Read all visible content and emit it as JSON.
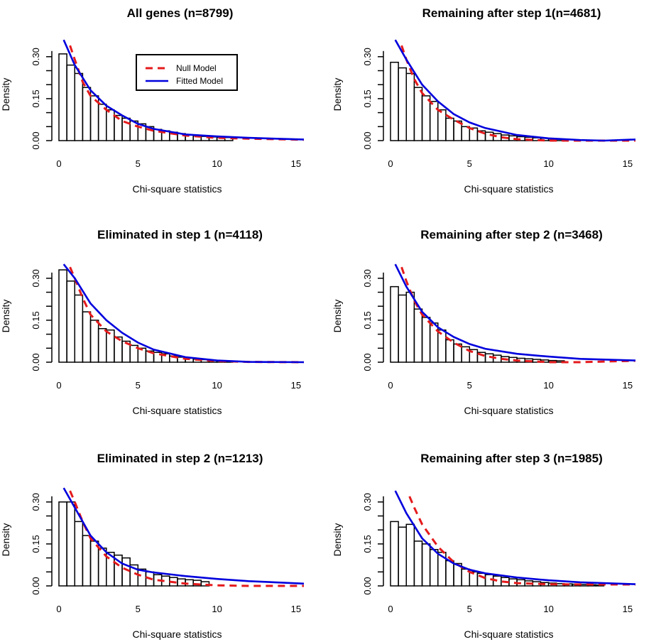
{
  "legend": {
    "null_label": "Null Model",
    "fitted_label": "Fitted Model",
    "null_color": "#e41a1c",
    "fitted_color": "#0000dd"
  },
  "chart_data": [
    {
      "type": "bar",
      "title": "All genes (n=8799)",
      "xlabel": "Chi-square statistics",
      "ylabel": "Density",
      "xlim": [
        0,
        15.5
      ],
      "ylim": [
        0,
        0.33
      ],
      "xticks": [
        "0",
        "5",
        "10",
        "15"
      ],
      "yticks": [
        "0.00",
        "0.15",
        "0.30"
      ],
      "bin_width": 0.5,
      "bin_start": 0,
      "values": [
        0.31,
        0.27,
        0.24,
        0.19,
        0.16,
        0.13,
        0.11,
        0.09,
        0.08,
        0.07,
        0.06,
        0.05,
        0.04,
        0.035,
        0.03,
        0.025,
        0.02,
        0.018,
        0.015,
        0.013,
        0.012,
        0.011
      ],
      "legend": true,
      "curves": {
        "null": [
          [
            0.7,
            0.34
          ],
          [
            1,
            0.29
          ],
          [
            1.5,
            0.21
          ],
          [
            2,
            0.16
          ],
          [
            3,
            0.11
          ],
          [
            4,
            0.07
          ],
          [
            5,
            0.05
          ],
          [
            6,
            0.035
          ],
          [
            8,
            0.018
          ],
          [
            10,
            0.01
          ],
          [
            12,
            0.007
          ],
          [
            15.5,
            0.003
          ]
        ],
        "fitted": [
          [
            0.3,
            0.36
          ],
          [
            1,
            0.27
          ],
          [
            2,
            0.18
          ],
          [
            3,
            0.125
          ],
          [
            4,
            0.09
          ],
          [
            5,
            0.06
          ],
          [
            6,
            0.042
          ],
          [
            8,
            0.022
          ],
          [
            10,
            0.015
          ],
          [
            12,
            0.01
          ],
          [
            15.5,
            0.004
          ]
        ]
      }
    },
    {
      "type": "bar",
      "title": "Remaining after step 1(n=4681)",
      "xlabel": "Chi-square statistics",
      "ylabel": "Density",
      "xlim": [
        0,
        15.5
      ],
      "ylim": [
        0,
        0.33
      ],
      "xticks": [
        "0",
        "5",
        "10",
        "15"
      ],
      "yticks": [
        "0.00",
        "0.15",
        "0.30"
      ],
      "bin_width": 0.5,
      "bin_start": 0,
      "values": [
        0.28,
        0.26,
        0.24,
        0.19,
        0.16,
        0.14,
        0.11,
        0.08,
        0.07,
        0.05,
        0.045,
        0.035,
        0.03,
        0.025,
        0.02,
        0.017,
        0.014,
        0.012,
        0.01,
        0.008,
        0.006,
        0.005
      ],
      "legend": false,
      "curves": {
        "null": [
          [
            0.7,
            0.34
          ],
          [
            1,
            0.29
          ],
          [
            1.5,
            0.22
          ],
          [
            2,
            0.17
          ],
          [
            3,
            0.11
          ],
          [
            4,
            0.075
          ],
          [
            5,
            0.045
          ],
          [
            6,
            0.025
          ],
          [
            7,
            0.012
          ],
          [
            8,
            0.005
          ],
          [
            10,
            0.0
          ],
          [
            12,
            0.0
          ],
          [
            15.5,
            0.0
          ]
        ],
        "fitted": [
          [
            0.3,
            0.36
          ],
          [
            1,
            0.29
          ],
          [
            2,
            0.2
          ],
          [
            3,
            0.14
          ],
          [
            4,
            0.095
          ],
          [
            5,
            0.065
          ],
          [
            6,
            0.045
          ],
          [
            8,
            0.02
          ],
          [
            10,
            0.008
          ],
          [
            12,
            0.002
          ],
          [
            13.5,
            0.0
          ],
          [
            15.5,
            0.004
          ]
        ]
      }
    },
    {
      "type": "bar",
      "title": "Eliminated in step 1 (n=4118)",
      "xlabel": "Chi-square statistics",
      "ylabel": "Density",
      "xlim": [
        0,
        15.5
      ],
      "ylim": [
        0,
        0.33
      ],
      "xticks": [
        "0",
        "5",
        "10",
        "15"
      ],
      "yticks": [
        "0.00",
        "0.15",
        "0.30"
      ],
      "bin_width": 0.5,
      "bin_start": 0,
      "values": [
        0.33,
        0.29,
        0.24,
        0.18,
        0.15,
        0.12,
        0.115,
        0.09,
        0.075,
        0.06,
        0.05,
        0.04,
        0.035,
        0.03,
        0.022,
        0.018,
        0.014,
        0.011,
        0.009,
        0.007,
        0.005,
        0.003
      ],
      "legend": false,
      "curves": {
        "null": [
          [
            0.7,
            0.34
          ],
          [
            1,
            0.3
          ],
          [
            1.5,
            0.23
          ],
          [
            2,
            0.17
          ],
          [
            3,
            0.11
          ],
          [
            4,
            0.075
          ],
          [
            5,
            0.05
          ],
          [
            6,
            0.032
          ],
          [
            8,
            0.012
          ],
          [
            10,
            0.004
          ],
          [
            12,
            0.001
          ],
          [
            15.5,
            0.0
          ]
        ],
        "fitted": [
          [
            0.3,
            0.35
          ],
          [
            1,
            0.3
          ],
          [
            2,
            0.21
          ],
          [
            3,
            0.15
          ],
          [
            4,
            0.105
          ],
          [
            5,
            0.07
          ],
          [
            6,
            0.045
          ],
          [
            8,
            0.018
          ],
          [
            10,
            0.006
          ],
          [
            12,
            0.001
          ],
          [
            15.5,
            0.0
          ]
        ]
      }
    },
    {
      "type": "bar",
      "title": "Remaining after step 2 (n=3468)",
      "xlabel": "Chi-square statistics",
      "ylabel": "Density",
      "xlim": [
        0,
        15.5
      ],
      "ylim": [
        0,
        0.33
      ],
      "xticks": [
        "0",
        "5",
        "10",
        "15"
      ],
      "yticks": [
        "0.00",
        "0.15",
        "0.30"
      ],
      "bin_width": 0.5,
      "bin_start": 0,
      "values": [
        0.27,
        0.24,
        0.25,
        0.19,
        0.16,
        0.14,
        0.115,
        0.08,
        0.065,
        0.055,
        0.045,
        0.035,
        0.03,
        0.025,
        0.02,
        0.017,
        0.014,
        0.012,
        0.01,
        0.008,
        0.006,
        0.005
      ],
      "legend": false,
      "curves": {
        "null": [
          [
            0.7,
            0.34
          ],
          [
            1,
            0.29
          ],
          [
            1.5,
            0.22
          ],
          [
            2,
            0.17
          ],
          [
            3,
            0.11
          ],
          [
            4,
            0.07
          ],
          [
            5,
            0.04
          ],
          [
            6,
            0.022
          ],
          [
            7,
            0.012
          ],
          [
            8,
            0.006
          ],
          [
            10,
            0.0
          ],
          [
            12,
            0.0
          ],
          [
            15.5,
            0.005
          ]
        ],
        "fitted": [
          [
            0.3,
            0.35
          ],
          [
            1,
            0.27
          ],
          [
            2,
            0.18
          ],
          [
            3,
            0.125
          ],
          [
            4,
            0.09
          ],
          [
            5,
            0.065
          ],
          [
            6,
            0.048
          ],
          [
            8,
            0.03
          ],
          [
            10,
            0.02
          ],
          [
            12,
            0.012
          ],
          [
            15.5,
            0.006
          ]
        ]
      }
    },
    {
      "type": "bar",
      "title": "Eliminated in step 2 (n=1213)",
      "xlabel": "Chi-square statistics",
      "ylabel": "Density",
      "xlim": [
        0,
        15.5
      ],
      "ylim": [
        0,
        0.33
      ],
      "xticks": [
        "0",
        "5",
        "10",
        "15"
      ],
      "yticks": [
        "0.00",
        "0.15",
        "0.30"
      ],
      "bin_width": 0.5,
      "bin_start": 0,
      "values": [
        0.3,
        0.3,
        0.23,
        0.18,
        0.16,
        0.135,
        0.12,
        0.11,
        0.1,
        0.075,
        0.06,
        0.05,
        0.04,
        0.035,
        0.03,
        0.025,
        0.022,
        0.02,
        0.015
      ],
      "legend": false,
      "curves": {
        "null": [
          [
            0.7,
            0.34
          ],
          [
            1,
            0.3
          ],
          [
            1.5,
            0.23
          ],
          [
            2,
            0.17
          ],
          [
            3,
            0.105
          ],
          [
            4,
            0.065
          ],
          [
            5,
            0.04
          ],
          [
            6,
            0.022
          ],
          [
            8,
            0.008
          ],
          [
            10,
            0.002
          ],
          [
            12,
            0.0
          ],
          [
            15.5,
            0.0
          ]
        ],
        "fitted": [
          [
            0.3,
            0.35
          ],
          [
            1,
            0.28
          ],
          [
            2,
            0.18
          ],
          [
            3,
            0.12
          ],
          [
            4,
            0.08
          ],
          [
            5,
            0.058
          ],
          [
            6,
            0.048
          ],
          [
            8,
            0.035
          ],
          [
            10,
            0.025
          ],
          [
            12,
            0.017
          ],
          [
            15.5,
            0.008
          ]
        ]
      }
    },
    {
      "type": "bar",
      "title": "Remaining after step 3 (n=1985)",
      "xlabel": "Chi-square statistics",
      "ylabel": "Density",
      "xlim": [
        0,
        15.5
      ],
      "ylim": [
        0,
        0.33
      ],
      "xticks": [
        "0",
        "5",
        "10",
        "15"
      ],
      "yticks": [
        "0.00",
        "0.15",
        "0.30"
      ],
      "bin_width": 0.5,
      "bin_start": 0,
      "values": [
        0.23,
        0.21,
        0.22,
        0.16,
        0.15,
        0.13,
        0.12,
        0.09,
        0.08,
        0.06,
        0.05,
        0.045,
        0.04,
        0.035,
        0.03,
        0.025,
        0.022,
        0.018,
        0.015,
        0.012,
        0.01,
        0.008,
        0.007,
        0.006,
        0.005,
        0.004,
        0.003
      ],
      "legend": false,
      "curves": {
        "null": [
          [
            1.2,
            0.32
          ],
          [
            1.5,
            0.28
          ],
          [
            2,
            0.22
          ],
          [
            3,
            0.14
          ],
          [
            4,
            0.085
          ],
          [
            5,
            0.05
          ],
          [
            6,
            0.028
          ],
          [
            7,
            0.016
          ],
          [
            8,
            0.01
          ],
          [
            10,
            0.006
          ],
          [
            12,
            0.005
          ],
          [
            15.5,
            0.005
          ]
        ],
        "fitted": [
          [
            0.3,
            0.34
          ],
          [
            1,
            0.26
          ],
          [
            2,
            0.17
          ],
          [
            3,
            0.115
          ],
          [
            4,
            0.08
          ],
          [
            5,
            0.058
          ],
          [
            6,
            0.045
          ],
          [
            8,
            0.03
          ],
          [
            10,
            0.02
          ],
          [
            12,
            0.013
          ],
          [
            15.5,
            0.006
          ]
        ]
      }
    }
  ]
}
